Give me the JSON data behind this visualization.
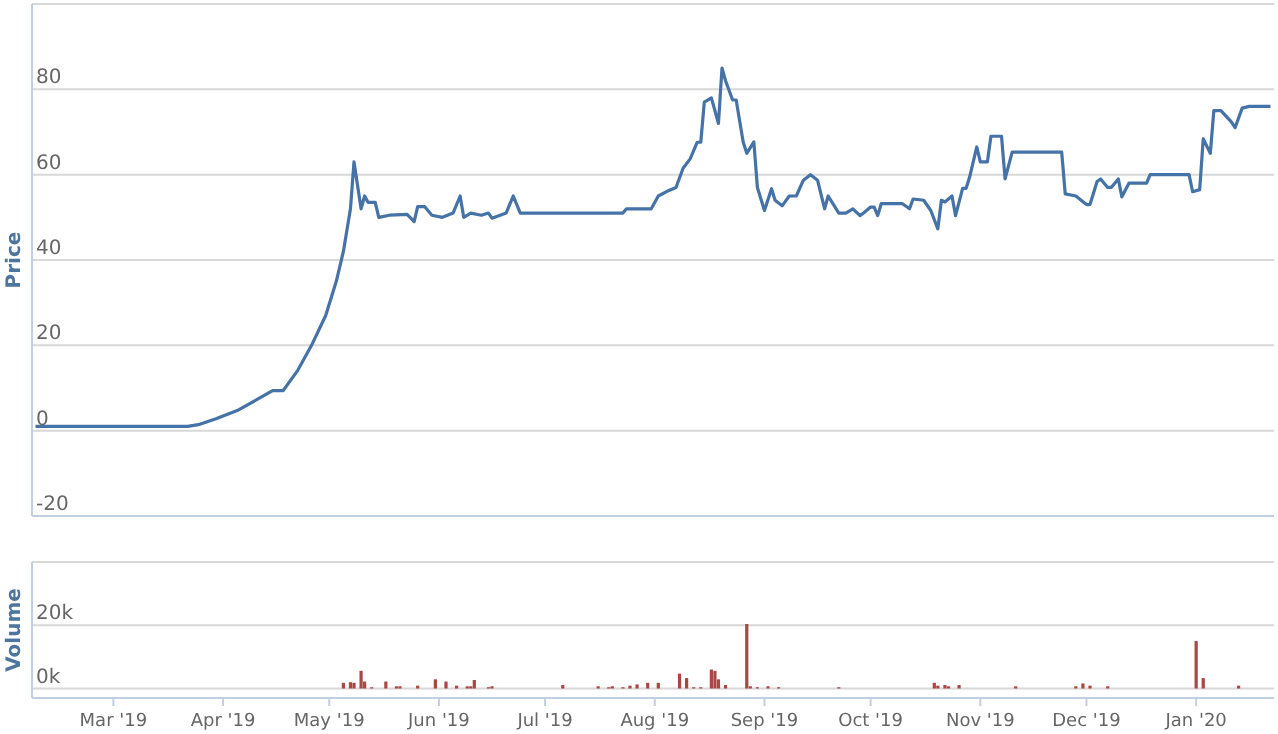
{
  "chart_data": [
    {
      "type": "line",
      "ylabel": "Price",
      "color": "#4572a7",
      "grid": "y",
      "tick_labels": "y",
      "xlim": [
        "2019-02-06",
        "2020-01-23"
      ],
      "ylim": [
        -20,
        100
      ],
      "yticks": [
        -20,
        0,
        20,
        40,
        60,
        80,
        {
          "value": 100,
          "label": null
        }
      ],
      "x": [
        "2019-02-07",
        "2019-03-22",
        "2019-03-25",
        "2019-03-30",
        "2019-04-05",
        "2019-04-11",
        "2019-04-15",
        "2019-04-18",
        "2019-04-22",
        "2019-04-26",
        "2019-04-30",
        "2019-05-03",
        "2019-05-05",
        "2019-05-07",
        "2019-05-08",
        "2019-05-10",
        "2019-05-11",
        "2019-05-12",
        "2019-05-14",
        "2019-05-15",
        "2019-05-18",
        "2019-05-23",
        "2019-05-25",
        "2019-05-26",
        "2019-05-28",
        "2019-05-30",
        "2019-06-02",
        "2019-06-05",
        "2019-06-07",
        "2019-06-08",
        "2019-06-10",
        "2019-06-13",
        "2019-06-15",
        "2019-06-16",
        "2019-06-20",
        "2019-06-22",
        "2019-06-24",
        "2019-07-23",
        "2019-07-24",
        "2019-07-31",
        "2019-08-02",
        "2019-08-05",
        "2019-08-07",
        "2019-08-09",
        "2019-08-11",
        "2019-08-13",
        "2019-08-14",
        "2019-08-15",
        "2019-08-17",
        "2019-08-19",
        "2019-08-20",
        "2019-08-21",
        "2019-08-23",
        "2019-08-24",
        "2019-08-26",
        "2019-08-27",
        "2019-08-29",
        "2019-08-30",
        "2019-09-01",
        "2019-09-03",
        "2019-09-04",
        "2019-09-06",
        "2019-09-08",
        "2019-09-10",
        "2019-09-12",
        "2019-09-14",
        "2019-09-16",
        "2019-09-18",
        "2019-09-19",
        "2019-09-22",
        "2019-09-24",
        "2019-09-26",
        "2019-09-28",
        "2019-09-29",
        "2019-10-01",
        "2019-10-02",
        "2019-10-03",
        "2019-10-04",
        "2019-10-10",
        "2019-10-12",
        "2019-10-13",
        "2019-10-16",
        "2019-10-18",
        "2019-10-20",
        "2019-10-21",
        "2019-10-22",
        "2019-10-24",
        "2019-10-25",
        "2019-10-27",
        "2019-10-28",
        "2019-10-29",
        "2019-10-31",
        "2019-11-01",
        "2019-11-03",
        "2019-11-04",
        "2019-11-07",
        "2019-11-08",
        "2019-11-10",
        "2019-11-24",
        "2019-11-25",
        "2019-11-28",
        "2019-12-01",
        "2019-12-02",
        "2019-12-04",
        "2019-12-05",
        "2019-12-07",
        "2019-12-08",
        "2019-12-10",
        "2019-12-11",
        "2019-12-13",
        "2019-12-18",
        "2019-12-19",
        "2019-12-30",
        "2019-12-31",
        "2020-01-02",
        "2020-01-03",
        "2020-01-05",
        "2020-01-06",
        "2020-01-08",
        "2020-01-11",
        "2020-01-12",
        "2020-01-14",
        "2020-01-16",
        "2020-01-22"
      ],
      "values": [
        1,
        1,
        1.4,
        2.8,
        4.7,
        7.5,
        9.4,
        9.4,
        14,
        20,
        27,
        35,
        42,
        52,
        63,
        52,
        55,
        53.5,
        53.5,
        50,
        50.5,
        50.7,
        49,
        52.5,
        52.5,
        50.5,
        50,
        51,
        55,
        50,
        51,
        50.5,
        51,
        49.8,
        51,
        55,
        51,
        51,
        52,
        52,
        55,
        56.3,
        57,
        61.5,
        63.7,
        67.6,
        67.6,
        77,
        78,
        72,
        85,
        82,
        77.5,
        77.5,
        67.6,
        65,
        67.7,
        57,
        51.6,
        56.7,
        54,
        52.7,
        55,
        55,
        58.7,
        60,
        58.7,
        52,
        55,
        51,
        51,
        52,
        50.4,
        51,
        52.4,
        52.4,
        50.4,
        53.2,
        53.2,
        52,
        54.3,
        54,
        51.6,
        47.3,
        54,
        53.6,
        55,
        50.4,
        56.8,
        56.8,
        59.5,
        66.5,
        63,
        63,
        69,
        69,
        59,
        65.3,
        65.3,
        55.5,
        55,
        53,
        53,
        58.4,
        59,
        57,
        57,
        59,
        54.8,
        58,
        58,
        60,
        60,
        56,
        56.5,
        68.4,
        65,
        75,
        75,
        72.3,
        71,
        75.6,
        76,
        76
      ]
    },
    {
      "type": "bar",
      "ylabel": "Volume",
      "color": "#aa4643",
      "grid": "y",
      "xlim": [
        "2019-02-06",
        "2020-01-23"
      ],
      "ylim": [
        -3000,
        40000
      ],
      "yticks": [
        {
          "value": 0,
          "label": "0k"
        },
        {
          "value": 20000,
          "label": "20k"
        },
        {
          "value": 40000,
          "label": null
        }
      ],
      "xticks": [
        {
          "value": "2019-03-01",
          "label": "Mar '19"
        },
        {
          "value": "2019-04-01",
          "label": "Apr '19"
        },
        {
          "value": "2019-05-01",
          "label": "May '19"
        },
        {
          "value": "2019-06-01",
          "label": "Jun '19"
        },
        {
          "value": "2019-07-01",
          "label": "Jul '19"
        },
        {
          "value": "2019-08-01",
          "label": "Aug '19"
        },
        {
          "value": "2019-09-01",
          "label": "Sep '19"
        },
        {
          "value": "2019-10-01",
          "label": "Oct '19"
        },
        {
          "value": "2019-11-01",
          "label": "Nov '19"
        },
        {
          "value": "2019-12-01",
          "label": "Dec '19"
        },
        {
          "value": "2020-01-01",
          "label": "Jan '20"
        }
      ],
      "x": [
        "2019-05-05",
        "2019-05-07",
        "2019-05-08",
        "2019-05-10",
        "2019-05-11",
        "2019-05-13",
        "2019-05-17",
        "2019-05-20",
        "2019-05-21",
        "2019-05-26",
        "2019-05-31",
        "2019-06-03",
        "2019-06-06",
        "2019-06-09",
        "2019-06-10",
        "2019-06-11",
        "2019-06-15",
        "2019-06-16",
        "2019-07-06",
        "2019-07-16",
        "2019-07-19",
        "2019-07-20",
        "2019-07-23",
        "2019-07-25",
        "2019-07-27",
        "2019-07-30",
        "2019-08-02",
        "2019-08-08",
        "2019-08-10",
        "2019-08-12",
        "2019-08-14",
        "2019-08-17",
        "2019-08-18",
        "2019-08-19",
        "2019-08-21",
        "2019-08-27",
        "2019-08-28",
        "2019-08-30",
        "2019-09-02",
        "2019-09-05",
        "2019-09-22",
        "2019-10-19",
        "2019-10-20",
        "2019-10-22",
        "2019-10-23",
        "2019-10-26",
        "2019-11-11",
        "2019-11-28",
        "2019-11-30",
        "2019-12-02",
        "2019-12-07",
        "2020-01-01",
        "2020-01-03",
        "2020-01-13"
      ],
      "values": [
        1800,
        2000,
        1800,
        5600,
        2200,
        400,
        2200,
        700,
        700,
        900,
        2900,
        2200,
        900,
        700,
        700,
        2700,
        400,
        700,
        1100,
        700,
        400,
        700,
        400,
        900,
        1300,
        1800,
        1800,
        4700,
        3300,
        400,
        400,
        6000,
        5600,
        2900,
        1100,
        20400,
        700,
        400,
        700,
        400,
        400,
        1800,
        900,
        1100,
        700,
        1100,
        700,
        700,
        1600,
        900,
        700,
        15000,
        3300,
        900
      ]
    }
  ]
}
